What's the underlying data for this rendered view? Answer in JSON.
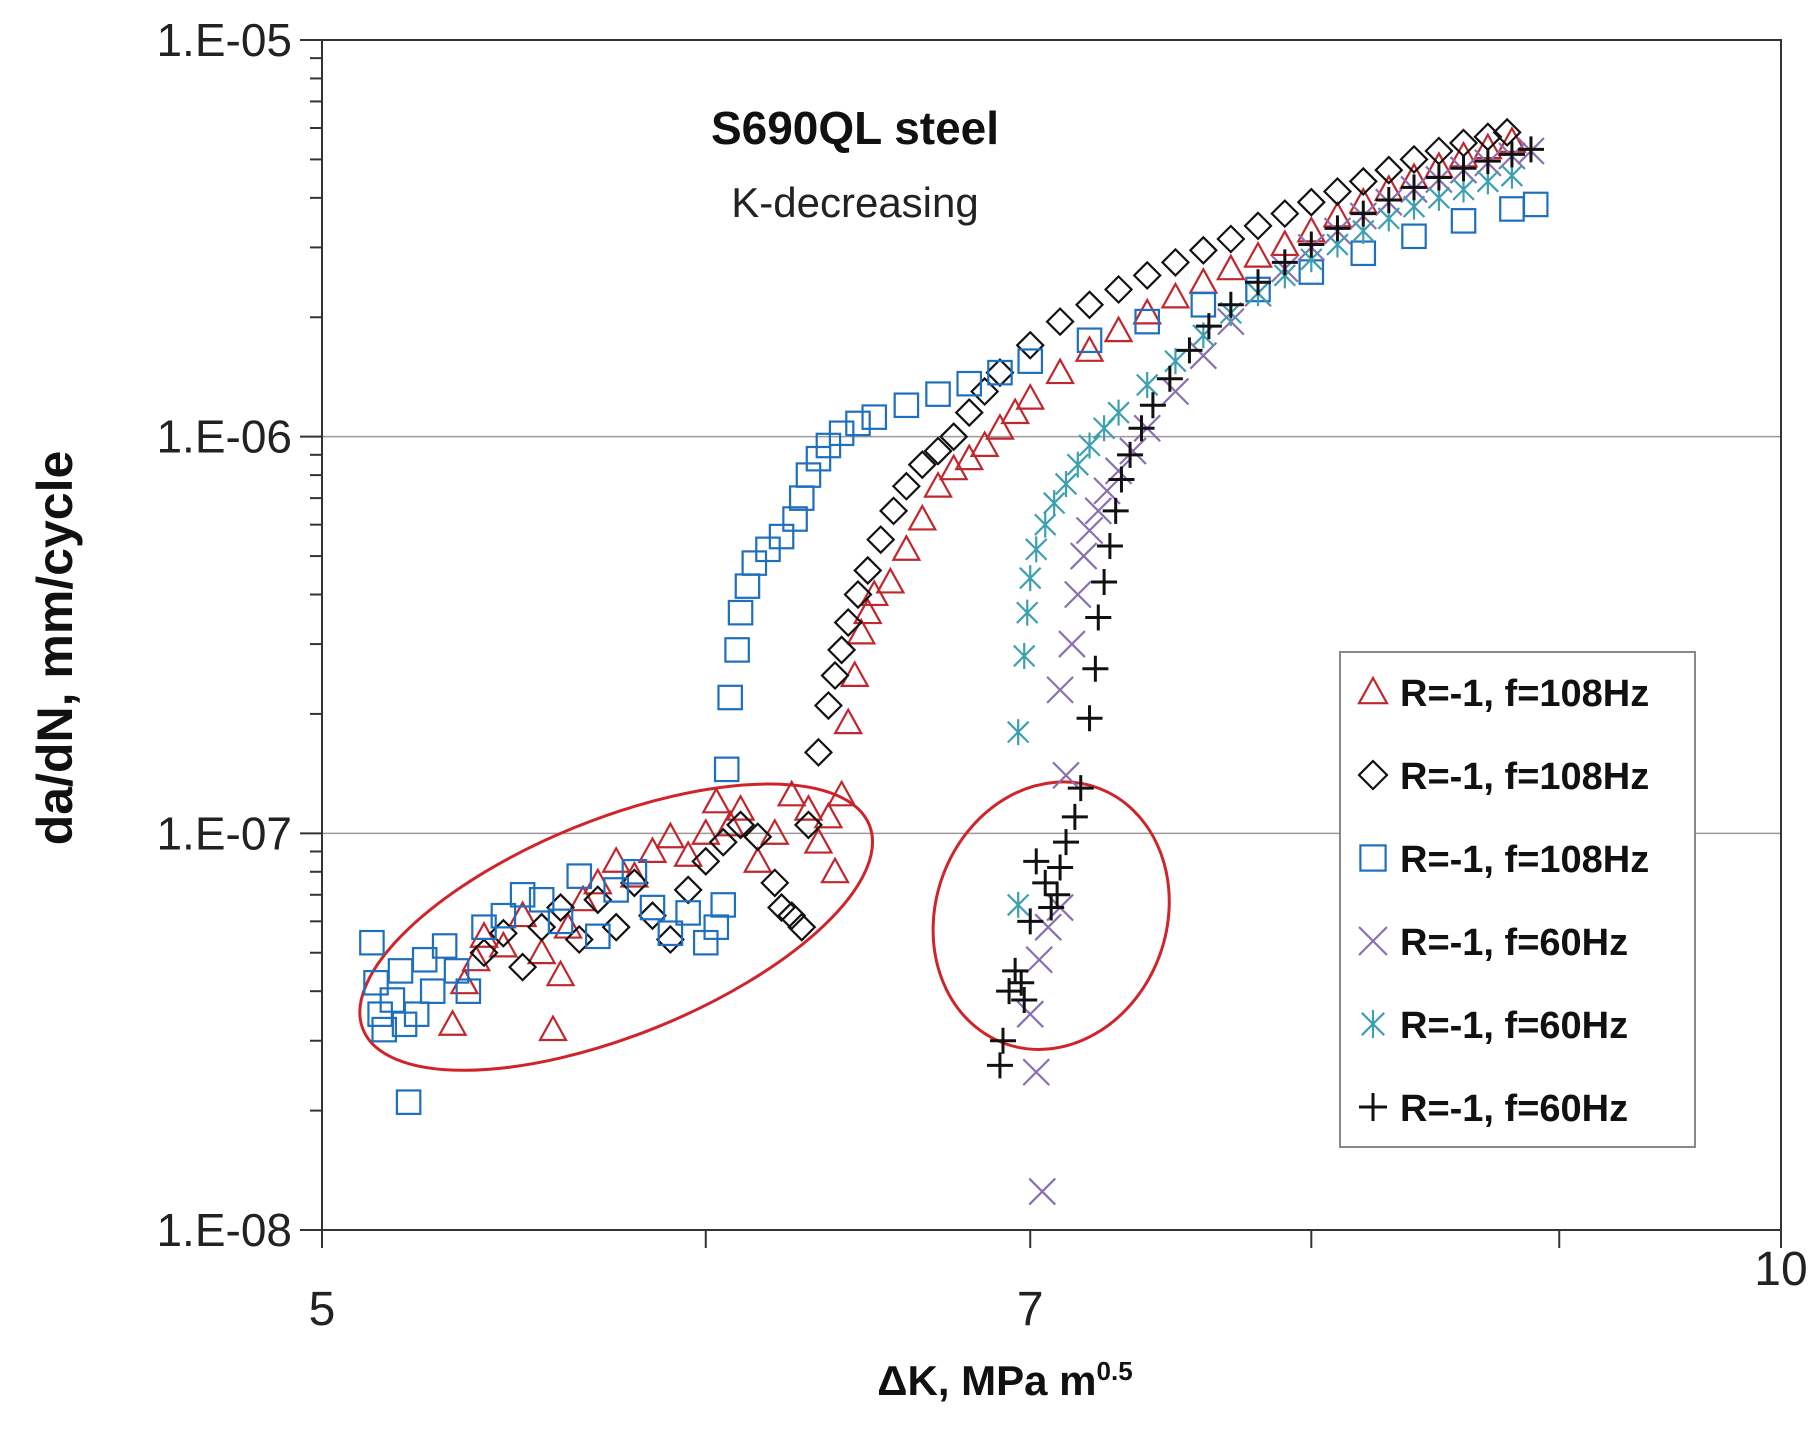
{
  "chart_data": {
    "type": "scatter",
    "title": "S690QL steel",
    "subtitle": "K-decreasing",
    "xlabel": "ΔK, MPa m",
    "xlabel_sup": "0.5",
    "ylabel": "da/dN, mm/cycle",
    "x_scale": "log",
    "y_scale": "log",
    "xlim": [
      5,
      10
    ],
    "ylim": [
      1e-08,
      1e-05
    ],
    "x_ticks": [
      {
        "value": 5,
        "label": "5"
      },
      {
        "value": 7,
        "label": "7"
      },
      {
        "value": 10,
        "label": "10"
      }
    ],
    "y_ticks": [
      {
        "value": 1e-05,
        "label": "1.E-05"
      },
      {
        "value": 1e-06,
        "label": "1.E-06"
      },
      {
        "value": 1e-07,
        "label": "1.E-07"
      },
      {
        "value": 1e-08,
        "label": "1.E-08"
      }
    ],
    "grid": "horizontal",
    "legend_position": "right",
    "series": [
      {
        "name": "R=-1, f=108Hz",
        "marker": "triangle",
        "color": "#c0272d",
        "points": [
          [
            5.32,
            3.3e-08
          ],
          [
            5.35,
            4.2e-08
          ],
          [
            5.38,
            4.8e-08
          ],
          [
            5.4,
            5.5e-08
          ],
          [
            5.45,
            5.2e-08
          ],
          [
            5.5,
            6.2e-08
          ],
          [
            5.55,
            5e-08
          ],
          [
            5.58,
            3.2e-08
          ],
          [
            5.6,
            4.4e-08
          ],
          [
            5.62,
            5.8e-08
          ],
          [
            5.66,
            6.8e-08
          ],
          [
            5.7,
            7.5e-08
          ],
          [
            5.75,
            8.5e-08
          ],
          [
            5.8,
            7.8e-08
          ],
          [
            5.85,
            9e-08
          ],
          [
            5.9,
            9.8e-08
          ],
          [
            5.95,
            8.8e-08
          ],
          [
            6.0,
            1e-07
          ],
          [
            6.03,
            1.2e-07
          ],
          [
            6.07,
            1.05e-07
          ],
          [
            6.1,
            1.15e-07
          ],
          [
            6.15,
            8.5e-08
          ],
          [
            6.2,
            1e-07
          ],
          [
            6.25,
            1.25e-07
          ],
          [
            6.3,
            1.15e-07
          ],
          [
            6.33,
            9.5e-08
          ],
          [
            6.36,
            1.1e-07
          ],
          [
            6.38,
            8e-08
          ],
          [
            6.4,
            1.25e-07
          ],
          [
            6.42,
            1.9e-07
          ],
          [
            6.44,
            2.5e-07
          ],
          [
            6.46,
            3.2e-07
          ],
          [
            6.48,
            3.6e-07
          ],
          [
            6.5,
            4e-07
          ],
          [
            6.55,
            4.3e-07
          ],
          [
            6.6,
            5.2e-07
          ],
          [
            6.65,
            6.2e-07
          ],
          [
            6.7,
            7.5e-07
          ],
          [
            6.75,
            8.3e-07
          ],
          [
            6.8,
            8.8e-07
          ],
          [
            6.85,
            9.5e-07
          ],
          [
            6.9,
            1.05e-06
          ],
          [
            6.95,
            1.15e-06
          ],
          [
            7.0,
            1.25e-06
          ],
          [
            7.1,
            1.45e-06
          ],
          [
            7.2,
            1.65e-06
          ],
          [
            7.3,
            1.85e-06
          ],
          [
            7.4,
            2.05e-06
          ],
          [
            7.5,
            2.25e-06
          ],
          [
            7.6,
            2.45e-06
          ],
          [
            7.7,
            2.65e-06
          ],
          [
            7.8,
            2.85e-06
          ],
          [
            7.9,
            3.05e-06
          ],
          [
            8.0,
            3.3e-06
          ],
          [
            8.1,
            3.6e-06
          ],
          [
            8.2,
            3.9e-06
          ],
          [
            8.3,
            4.2e-06
          ],
          [
            8.4,
            4.5e-06
          ],
          [
            8.5,
            4.8e-06
          ],
          [
            8.6,
            5.1e-06
          ],
          [
            8.7,
            5.35e-06
          ],
          [
            8.8,
            5.55e-06
          ]
        ]
      },
      {
        "name": "R=-1, f=108Hz",
        "marker": "diamond",
        "color": "#111111",
        "points": [
          [
            5.4,
            5e-08
          ],
          [
            5.45,
            5.6e-08
          ],
          [
            5.5,
            4.6e-08
          ],
          [
            5.55,
            5.8e-08
          ],
          [
            5.6,
            6.5e-08
          ],
          [
            5.65,
            5.4e-08
          ],
          [
            5.7,
            6.8e-08
          ],
          [
            5.75,
            5.8e-08
          ],
          [
            5.8,
            7.5e-08
          ],
          [
            5.85,
            6.2e-08
          ],
          [
            5.9,
            5.4e-08
          ],
          [
            5.95,
            7.2e-08
          ],
          [
            6.0,
            8.5e-08
          ],
          [
            6.05,
            9.5e-08
          ],
          [
            6.1,
            1.05e-07
          ],
          [
            6.15,
            9.8e-08
          ],
          [
            6.2,
            7.5e-08
          ],
          [
            6.22,
            6.5e-08
          ],
          [
            6.25,
            6.2e-08
          ],
          [
            6.28,
            5.8e-08
          ],
          [
            6.3,
            1.05e-07
          ],
          [
            6.33,
            1.6e-07
          ],
          [
            6.36,
            2.1e-07
          ],
          [
            6.38,
            2.5e-07
          ],
          [
            6.4,
            2.9e-07
          ],
          [
            6.42,
            3.4e-07
          ],
          [
            6.45,
            4e-07
          ],
          [
            6.48,
            4.6e-07
          ],
          [
            6.52,
            5.5e-07
          ],
          [
            6.56,
            6.5e-07
          ],
          [
            6.6,
            7.5e-07
          ],
          [
            6.65,
            8.5e-07
          ],
          [
            6.7,
            9.2e-07
          ],
          [
            6.75,
            1e-06
          ],
          [
            6.8,
            1.15e-06
          ],
          [
            6.85,
            1.3e-06
          ],
          [
            6.9,
            1.45e-06
          ],
          [
            7.0,
            1.7e-06
          ],
          [
            7.1,
            1.95e-06
          ],
          [
            7.2,
            2.15e-06
          ],
          [
            7.3,
            2.35e-06
          ],
          [
            7.4,
            2.55e-06
          ],
          [
            7.5,
            2.75e-06
          ],
          [
            7.6,
            2.95e-06
          ],
          [
            7.7,
            3.15e-06
          ],
          [
            7.8,
            3.4e-06
          ],
          [
            7.9,
            3.65e-06
          ],
          [
            8.0,
            3.9e-06
          ],
          [
            8.1,
            4.15e-06
          ],
          [
            8.2,
            4.4e-06
          ],
          [
            8.3,
            4.7e-06
          ],
          [
            8.4,
            5e-06
          ],
          [
            8.5,
            5.25e-06
          ],
          [
            8.6,
            5.5e-06
          ],
          [
            8.7,
            5.7e-06
          ],
          [
            8.78,
            5.85e-06
          ]
        ]
      },
      {
        "name": "R=-1, f=108Hz",
        "marker": "square",
        "color": "#1f6fbf",
        "points": [
          [
            5.12,
            5.3e-08
          ],
          [
            5.13,
            4.2e-08
          ],
          [
            5.14,
            3.5e-08
          ],
          [
            5.15,
            3.2e-08
          ],
          [
            5.17,
            3.8e-08
          ],
          [
            5.19,
            4.5e-08
          ],
          [
            5.2,
            3.3e-08
          ],
          [
            5.21,
            2.1e-08
          ],
          [
            5.23,
            3.5e-08
          ],
          [
            5.25,
            4.8e-08
          ],
          [
            5.27,
            4e-08
          ],
          [
            5.3,
            5.2e-08
          ],
          [
            5.33,
            4.5e-08
          ],
          [
            5.36,
            4e-08
          ],
          [
            5.4,
            5.8e-08
          ],
          [
            5.45,
            6.2e-08
          ],
          [
            5.5,
            7e-08
          ],
          [
            5.55,
            6.8e-08
          ],
          [
            5.6,
            6e-08
          ],
          [
            5.65,
            7.8e-08
          ],
          [
            5.7,
            5.5e-08
          ],
          [
            5.75,
            7.2e-08
          ],
          [
            5.8,
            8e-08
          ],
          [
            5.85,
            6.5e-08
          ],
          [
            5.9,
            5.6e-08
          ],
          [
            5.95,
            6.3e-08
          ],
          [
            6.0,
            5.3e-08
          ],
          [
            6.03,
            5.8e-08
          ],
          [
            6.05,
            6.6e-08
          ],
          [
            6.06,
            1.45e-07
          ],
          [
            6.07,
            2.2e-07
          ],
          [
            6.09,
            2.9e-07
          ],
          [
            6.1,
            3.6e-07
          ],
          [
            6.12,
            4.2e-07
          ],
          [
            6.14,
            4.8e-07
          ],
          [
            6.18,
            5.2e-07
          ],
          [
            6.22,
            5.6e-07
          ],
          [
            6.26,
            6.2e-07
          ],
          [
            6.28,
            7e-07
          ],
          [
            6.3,
            8e-07
          ],
          [
            6.33,
            8.8e-07
          ],
          [
            6.36,
            9.5e-07
          ],
          [
            6.4,
            1.02e-06
          ],
          [
            6.45,
            1.08e-06
          ],
          [
            6.5,
            1.12e-06
          ],
          [
            6.6,
            1.2e-06
          ],
          [
            6.7,
            1.28e-06
          ],
          [
            6.8,
            1.36e-06
          ],
          [
            6.9,
            1.45e-06
          ],
          [
            7.0,
            1.55e-06
          ],
          [
            7.2,
            1.75e-06
          ],
          [
            7.4,
            1.95e-06
          ],
          [
            7.6,
            2.15e-06
          ],
          [
            7.8,
            2.35e-06
          ],
          [
            8.0,
            2.6e-06
          ],
          [
            8.2,
            2.9e-06
          ],
          [
            8.4,
            3.2e-06
          ],
          [
            8.6,
            3.5e-06
          ],
          [
            8.8,
            3.75e-06
          ],
          [
            8.9,
            3.85e-06
          ]
        ]
      },
      {
        "name": "R=-1, f=60Hz",
        "marker": "x",
        "color": "#8a6fb0",
        "points": [
          [
            7.04,
            1.25e-08
          ],
          [
            7.02,
            2.5e-08
          ],
          [
            7.0,
            3.5e-08
          ],
          [
            7.03,
            4.8e-08
          ],
          [
            7.06,
            5.8e-08
          ],
          [
            7.1,
            6.5e-08
          ],
          [
            7.12,
            1.4e-07
          ],
          [
            7.1,
            2.3e-07
          ],
          [
            7.14,
            3e-07
          ],
          [
            7.16,
            4e-07
          ],
          [
            7.18,
            5e-07
          ],
          [
            7.2,
            5.8e-07
          ],
          [
            7.23,
            6.5e-07
          ],
          [
            7.26,
            7.3e-07
          ],
          [
            7.3,
            8.2e-07
          ],
          [
            7.35,
            9.2e-07
          ],
          [
            7.4,
            1.05e-06
          ],
          [
            7.5,
            1.3e-06
          ],
          [
            7.6,
            1.6e-06
          ],
          [
            7.7,
            1.95e-06
          ],
          [
            7.8,
            2.3e-06
          ],
          [
            7.9,
            2.65e-06
          ],
          [
            8.0,
            3e-06
          ],
          [
            8.1,
            3.3e-06
          ],
          [
            8.2,
            3.6e-06
          ],
          [
            8.3,
            3.9e-06
          ],
          [
            8.4,
            4.2e-06
          ],
          [
            8.5,
            4.45e-06
          ],
          [
            8.6,
            4.7e-06
          ],
          [
            8.7,
            4.9e-06
          ],
          [
            8.8,
            5.1e-06
          ],
          [
            8.88,
            5.25e-06
          ]
        ]
      },
      {
        "name": "R=-1, f=60Hz",
        "marker": "asterisk",
        "color": "#3da0b0",
        "points": [
          [
            6.96,
            6.6e-08
          ],
          [
            6.96,
            1.8e-07
          ],
          [
            6.98,
            2.8e-07
          ],
          [
            6.99,
            3.6e-07
          ],
          [
            7.0,
            4.4e-07
          ],
          [
            7.02,
            5.2e-07
          ],
          [
            7.05,
            6e-07
          ],
          [
            7.08,
            6.8e-07
          ],
          [
            7.12,
            7.6e-07
          ],
          [
            7.16,
            8.5e-07
          ],
          [
            7.2,
            9.5e-07
          ],
          [
            7.25,
            1.05e-06
          ],
          [
            7.3,
            1.15e-06
          ],
          [
            7.4,
            1.35e-06
          ],
          [
            7.5,
            1.55e-06
          ],
          [
            7.6,
            1.8e-06
          ],
          [
            7.7,
            2.05e-06
          ],
          [
            7.8,
            2.3e-06
          ],
          [
            7.9,
            2.55e-06
          ],
          [
            8.0,
            2.8e-06
          ],
          [
            8.1,
            3.05e-06
          ],
          [
            8.2,
            3.3e-06
          ],
          [
            8.3,
            3.55e-06
          ],
          [
            8.4,
            3.8e-06
          ],
          [
            8.5,
            4e-06
          ],
          [
            8.6,
            4.2e-06
          ],
          [
            8.7,
            4.4e-06
          ],
          [
            8.8,
            4.55e-06
          ]
        ]
      },
      {
        "name": "R=-1, f=60Hz",
        "marker": "plus",
        "color": "#111111",
        "points": [
          [
            6.9,
            2.6e-08
          ],
          [
            6.91,
            3e-08
          ],
          [
            6.93,
            4e-08
          ],
          [
            6.95,
            4.5e-08
          ],
          [
            6.97,
            4.2e-08
          ],
          [
            6.98,
            3.8e-08
          ],
          [
            7.0,
            6e-08
          ],
          [
            7.02,
            8.5e-08
          ],
          [
            7.05,
            7.5e-08
          ],
          [
            7.07,
            6.5e-08
          ],
          [
            7.09,
            7e-08
          ],
          [
            7.1,
            8.2e-08
          ],
          [
            7.12,
            9.5e-08
          ],
          [
            7.15,
            1.1e-07
          ],
          [
            7.17,
            1.3e-07
          ],
          [
            7.2,
            1.95e-07
          ],
          [
            7.22,
            2.6e-07
          ],
          [
            7.23,
            3.5e-07
          ],
          [
            7.25,
            4.3e-07
          ],
          [
            7.27,
            5.3e-07
          ],
          [
            7.29,
            6.5e-07
          ],
          [
            7.31,
            7.8e-07
          ],
          [
            7.34,
            9e-07
          ],
          [
            7.38,
            1.05e-06
          ],
          [
            7.42,
            1.2e-06
          ],
          [
            7.48,
            1.4e-06
          ],
          [
            7.55,
            1.65e-06
          ],
          [
            7.62,
            1.9e-06
          ],
          [
            7.7,
            2.15e-06
          ],
          [
            7.8,
            2.45e-06
          ],
          [
            7.9,
            2.75e-06
          ],
          [
            8.0,
            3.05e-06
          ],
          [
            8.1,
            3.35e-06
          ],
          [
            8.2,
            3.65e-06
          ],
          [
            8.3,
            3.95e-06
          ],
          [
            8.4,
            4.25e-06
          ],
          [
            8.5,
            4.5e-06
          ],
          [
            8.6,
            4.75e-06
          ],
          [
            8.7,
            4.95e-06
          ],
          [
            8.8,
            5.15e-06
          ],
          [
            8.88,
            5.3e-06
          ]
        ]
      }
    ],
    "annotations": [
      {
        "type": "ellipse",
        "color": "#d0242b",
        "cx": 5.75,
        "cy": 5.8e-08,
        "rx_factor": 1.3,
        "ry_factor": 1.35,
        "angle_deg": -22
      },
      {
        "type": "ellipse",
        "color": "#d0242b",
        "cx": 7.07,
        "cy": 6.2e-08,
        "rx_factor": 0.55,
        "ry_factor": 1.7,
        "angle_deg": 20
      }
    ]
  }
}
